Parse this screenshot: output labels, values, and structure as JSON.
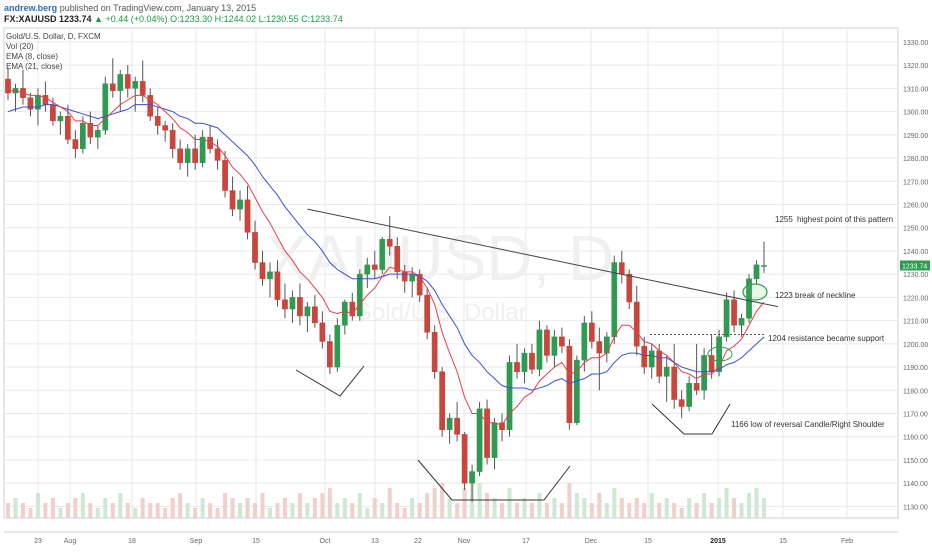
{
  "header": {
    "author": "andrew.berg",
    "published": "published on TradingView.com, January 13, 2015",
    "symbol": "FX:XAUUSD",
    "last": "1233.74",
    "change": "▲ +0.44 (+0.04%)",
    "ohlc": "O:1233.30 H:1244.02 L:1230.55 C:1233.74"
  },
  "legend": {
    "title": "Gold/U.S. Dollar, D, FXCM",
    "vol": "Vol (20)",
    "ema8": "EMA (8, close)",
    "ema21": "EMA (21, close)"
  },
  "watermark": {
    "symbol": "XAUUSD, D",
    "name": "Gold/U.S. Dollar"
  },
  "colors": {
    "up": "#2e9a52",
    "down": "#c9463d",
    "ema8": "#e0404a",
    "ema21": "#3b4fd6",
    "grid": "#e9e9e9",
    "last_price": "#2e9a52"
  },
  "annotations": [
    {
      "price": "1255",
      "text": "highest point of this pattern"
    },
    {
      "price": "1223",
      "text": "break of neckline"
    },
    {
      "price": "1204",
      "text": "resistance became support"
    },
    {
      "price": "1166",
      "text": "low of reversal Candle/Right Shoulder"
    }
  ],
  "chart_data": {
    "type": "candlestick",
    "y_ticks": [
      "1330.00",
      "1320.00",
      "1310.00",
      "1300.00",
      "1290.00",
      "1280.00",
      "1270.00",
      "1260.00",
      "1250.00",
      "1240.00",
      "1230.00",
      "1220.00",
      "1210.00",
      "1200.00",
      "1190.00",
      "1180.00",
      "1170.00",
      "1160.00",
      "1150.00",
      "1140.00",
      "1130.00"
    ],
    "x_ticks": [
      "23",
      "Aug",
      "18",
      "Sep",
      "15",
      "Oct",
      "13",
      "22",
      "Nov",
      "17",
      "Dec",
      "15",
      "2015",
      "15",
      "Feb"
    ],
    "ylim": [
      1125,
      1336
    ],
    "last_price_label": "1233.74",
    "candles": [
      [
        1314,
        1319,
        1305,
        1308
      ],
      [
        1308,
        1312,
        1300,
        1310
      ],
      [
        1310,
        1318,
        1303,
        1306
      ],
      [
        1306,
        1308,
        1298,
        1301
      ],
      [
        1301,
        1310,
        1294,
        1307
      ],
      [
        1307,
        1313,
        1300,
        1303
      ],
      [
        1303,
        1306,
        1294,
        1296
      ],
      [
        1296,
        1300,
        1290,
        1298
      ],
      [
        1298,
        1303,
        1286,
        1288
      ],
      [
        1288,
        1292,
        1280,
        1284
      ],
      [
        1284,
        1298,
        1282,
        1295
      ],
      [
        1295,
        1300,
        1286,
        1289
      ],
      [
        1289,
        1294,
        1284,
        1292
      ],
      [
        1292,
        1315,
        1290,
        1312
      ],
      [
        1312,
        1323,
        1306,
        1309
      ],
      [
        1309,
        1318,
        1300,
        1316
      ],
      [
        1316,
        1320,
        1306,
        1310
      ],
      [
        1310,
        1315,
        1300,
        1313
      ],
      [
        1313,
        1322,
        1304,
        1307
      ],
      [
        1307,
        1310,
        1296,
        1298
      ],
      [
        1298,
        1302,
        1290,
        1294
      ],
      [
        1294,
        1296,
        1287,
        1292
      ],
      [
        1292,
        1295,
        1280,
        1284
      ],
      [
        1284,
        1288,
        1275,
        1278
      ],
      [
        1278,
        1286,
        1272,
        1284
      ],
      [
        1284,
        1290,
        1275,
        1278
      ],
      [
        1278,
        1292,
        1276,
        1289
      ],
      [
        1289,
        1294,
        1282,
        1284
      ],
      [
        1284,
        1288,
        1275,
        1279
      ],
      [
        1279,
        1283,
        1263,
        1266
      ],
      [
        1266,
        1272,
        1255,
        1258
      ],
      [
        1258,
        1266,
        1253,
        1262
      ],
      [
        1262,
        1268,
        1245,
        1248
      ],
      [
        1248,
        1253,
        1232,
        1235
      ],
      [
        1235,
        1240,
        1225,
        1228
      ],
      [
        1228,
        1235,
        1220,
        1231
      ],
      [
        1231,
        1236,
        1216,
        1219
      ],
      [
        1219,
        1226,
        1211,
        1215
      ],
      [
        1215,
        1223,
        1209,
        1220
      ],
      [
        1220,
        1226,
        1208,
        1212
      ],
      [
        1212,
        1218,
        1205,
        1216
      ],
      [
        1216,
        1221,
        1207,
        1209
      ],
      [
        1209,
        1214,
        1198,
        1201
      ],
      [
        1201,
        1204,
        1187,
        1190
      ],
      [
        1190,
        1211,
        1188,
        1208
      ],
      [
        1208,
        1219,
        1204,
        1218
      ],
      [
        1218,
        1222,
        1210,
        1212
      ],
      [
        1212,
        1232,
        1210,
        1230
      ],
      [
        1230,
        1237,
        1224,
        1234
      ],
      [
        1234,
        1240,
        1228,
        1232
      ],
      [
        1232,
        1246,
        1230,
        1245
      ],
      [
        1245,
        1255,
        1238,
        1242
      ],
      [
        1242,
        1246,
        1228,
        1231
      ],
      [
        1231,
        1234,
        1222,
        1227
      ],
      [
        1227,
        1233,
        1220,
        1230
      ],
      [
        1230,
        1232,
        1218,
        1221
      ],
      [
        1221,
        1224,
        1202,
        1205
      ],
      [
        1205,
        1208,
        1185,
        1188
      ],
      [
        1188,
        1190,
        1160,
        1163
      ],
      [
        1163,
        1170,
        1157,
        1168
      ],
      [
        1168,
        1175,
        1158,
        1161
      ],
      [
        1161,
        1162,
        1137,
        1140
      ],
      [
        1140,
        1148,
        1132,
        1145
      ],
      [
        1145,
        1175,
        1143,
        1172
      ],
      [
        1172,
        1176,
        1148,
        1151
      ],
      [
        1151,
        1168,
        1146,
        1166
      ],
      [
        1166,
        1170,
        1158,
        1163
      ],
      [
        1163,
        1195,
        1160,
        1192
      ],
      [
        1192,
        1200,
        1185,
        1188
      ],
      [
        1188,
        1198,
        1183,
        1196
      ],
      [
        1196,
        1200,
        1187,
        1189
      ],
      [
        1189,
        1210,
        1186,
        1206
      ],
      [
        1206,
        1208,
        1192,
        1195
      ],
      [
        1195,
        1206,
        1190,
        1203
      ],
      [
        1203,
        1207,
        1196,
        1199
      ],
      [
        1199,
        1202,
        1163,
        1166
      ],
      [
        1166,
        1195,
        1165,
        1193
      ],
      [
        1193,
        1212,
        1188,
        1209
      ],
      [
        1209,
        1214,
        1198,
        1201
      ],
      [
        1201,
        1207,
        1180,
        1196
      ],
      [
        1196,
        1205,
        1192,
        1203
      ],
      [
        1203,
        1238,
        1200,
        1235
      ],
      [
        1235,
        1240,
        1226,
        1230
      ],
      [
        1230,
        1232,
        1215,
        1218
      ],
      [
        1218,
        1225,
        1195,
        1199
      ],
      [
        1199,
        1203,
        1187,
        1190
      ],
      [
        1190,
        1200,
        1185,
        1197
      ],
      [
        1197,
        1200,
        1183,
        1186
      ],
      [
        1186,
        1195,
        1175,
        1190
      ],
      [
        1190,
        1200,
        1172,
        1176
      ],
      [
        1176,
        1180,
        1168,
        1173
      ],
      [
        1173,
        1186,
        1171,
        1183
      ],
      [
        1183,
        1200,
        1178,
        1180
      ],
      [
        1180,
        1198,
        1176,
        1195
      ],
      [
        1195,
        1204,
        1185,
        1188
      ],
      [
        1188,
        1206,
        1186,
        1203
      ],
      [
        1203,
        1222,
        1201,
        1219
      ],
      [
        1219,
        1223,
        1205,
        1208
      ],
      [
        1208,
        1213,
        1203,
        1211
      ],
      [
        1211,
        1230,
        1209,
        1228
      ],
      [
        1228,
        1236,
        1226,
        1234
      ],
      [
        1233.3,
        1244.02,
        1230.55,
        1233.74
      ]
    ],
    "ema8": [
      1309,
      1309,
      1308,
      1307,
      1307,
      1306,
      1304,
      1302,
      1300,
      1296,
      1296,
      1294,
      1294,
      1297,
      1300,
      1303,
      1305,
      1307,
      1307,
      1305,
      1303,
      1300,
      1297,
      1293,
      1291,
      1288,
      1288,
      1287,
      1285,
      1281,
      1276,
      1273,
      1269,
      1263,
      1257,
      1252,
      1246,
      1240,
      1236,
      1231,
      1228,
      1224,
      1220,
      1214,
      1213,
      1214,
      1213,
      1217,
      1221,
      1224,
      1229,
      1233,
      1232,
      1231,
      1231,
      1229,
      1224,
      1217,
      1205,
      1196,
      1188,
      1177,
      1170,
      1170,
      1166,
      1166,
      1165,
      1170,
      1173,
      1177,
      1179,
      1184,
      1187,
      1190,
      1192,
      1187,
      1188,
      1192,
      1194,
      1194,
      1196,
      1203,
      1208,
      1208,
      1205,
      1201,
      1200,
      1197,
      1195,
      1192,
      1188,
      1187,
      1185,
      1187,
      1187,
      1190,
      1197,
      1199,
      1202,
      1208,
      1214,
      1218
    ],
    "ema21": [
      1300,
      1301,
      1302,
      1302,
      1302,
      1303,
      1303,
      1302,
      1301,
      1300,
      1299,
      1298,
      1297,
      1298,
      1299,
      1300,
      1301,
      1303,
      1303,
      1303,
      1302,
      1301,
      1300,
      1298,
      1297,
      1295,
      1295,
      1294,
      1293,
      1290,
      1287,
      1284,
      1281,
      1277,
      1272,
      1268,
      1264,
      1259,
      1255,
      1251,
      1247,
      1244,
      1240,
      1235,
      1232,
      1230,
      1228,
      1228,
      1228,
      1228,
      1229,
      1230,
      1230,
      1230,
      1230,
      1229,
      1227,
      1223,
      1217,
      1212,
      1207,
      1200,
      1195,
      1192,
      1188,
      1185,
      1182,
      1181,
      1181,
      1181,
      1180,
      1181,
      1182,
      1184,
      1185,
      1183,
      1184,
      1185,
      1187,
      1187,
      1188,
      1192,
      1195,
      1196,
      1196,
      1195,
      1195,
      1194,
      1194,
      1192,
      1190,
      1189,
      1188,
      1188,
      1188,
      1189,
      1191,
      1192,
      1194,
      1197,
      1200,
      1203
    ],
    "volume": [
      3,
      4,
      3,
      2,
      5,
      3,
      4,
      2,
      3,
      4,
      5,
      3,
      2,
      4,
      3,
      5,
      3,
      2,
      4,
      3,
      3,
      2,
      4,
      5,
      3,
      2,
      4,
      3,
      2,
      5,
      4,
      3,
      4,
      3,
      5,
      2,
      3,
      4,
      3,
      5,
      3,
      4,
      5,
      6,
      3,
      4,
      3,
      5,
      2,
      4,
      3,
      6,
      3,
      2,
      4,
      3,
      5,
      6,
      7,
      4,
      3,
      6,
      8,
      7,
      5,
      4,
      3,
      6,
      3,
      4,
      3,
      5,
      3,
      4,
      3,
      7,
      5,
      4,
      3,
      5,
      3,
      6,
      4,
      3,
      4,
      3,
      5,
      3,
      4,
      3,
      2,
      4,
      3,
      5,
      3,
      4,
      6,
      4,
      3,
      5,
      6,
      4
    ],
    "neckline": {
      "from": [
        40,
        1258
      ],
      "to": [
        106,
        1218
      ]
    },
    "support_1204": {
      "from": [
        88,
        1204
      ],
      "to": [
        102,
        1204
      ]
    }
  }
}
